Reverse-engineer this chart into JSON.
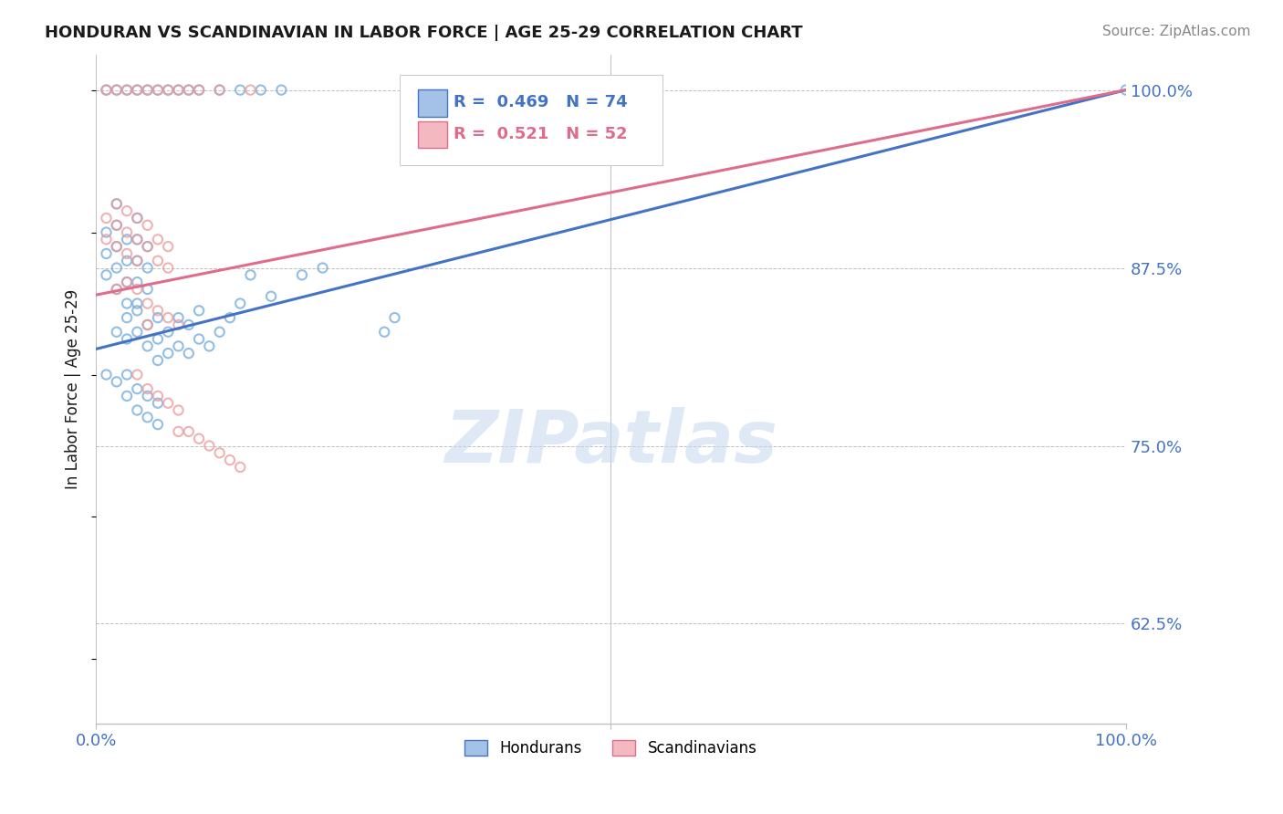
{
  "title": "HONDURAN VS SCANDINAVIAN IN LABOR FORCE | AGE 25-29 CORRELATION CHART",
  "source": "Source: ZipAtlas.com",
  "ylabel": "In Labor Force | Age 25-29",
  "xlim": [
    0.0,
    1.0
  ],
  "ylim": [
    0.555,
    1.025
  ],
  "ytick_vals": [
    0.625,
    0.75,
    0.875,
    1.0
  ],
  "ytick_labels": [
    "62.5%",
    "75.0%",
    "87.5%",
    "100.0%"
  ],
  "xtick_vals": [
    0.0,
    0.5,
    1.0
  ],
  "xtick_labels": [
    "0.0%",
    "",
    "100.0%"
  ],
  "honduran_color": "#6fa8dc",
  "honduran_edge": "#6fa8dc",
  "scandinavian_color": "#ea9999",
  "scandinavian_edge": "#ea9999",
  "honduran_line_color": "#4472c4",
  "scandinavian_line_color": "#e06c8c",
  "honduran_R": 0.469,
  "honduran_N": 74,
  "scandinavian_R": 0.521,
  "scandinavian_N": 52,
  "legend_hondurans": "Hondurans",
  "legend_scandinavians": "Scandinavians",
  "watermark": "ZIPatlas",
  "background_color": "#ffffff",
  "grid_color": "#c0c0c0",
  "tick_color": "#4472c4",
  "title_color": "#1a1a1a",
  "source_color": "#888888",
  "ylabel_color": "#1a1a1a",
  "hon_trend_x0": 0.0,
  "hon_trend_y0": 0.818,
  "hon_trend_x1": 1.0,
  "hon_trend_y1": 1.0,
  "scan_trend_x0": 0.0,
  "scan_trend_y0": 0.856,
  "scan_trend_x1": 1.0,
  "scan_trend_y1": 1.0
}
